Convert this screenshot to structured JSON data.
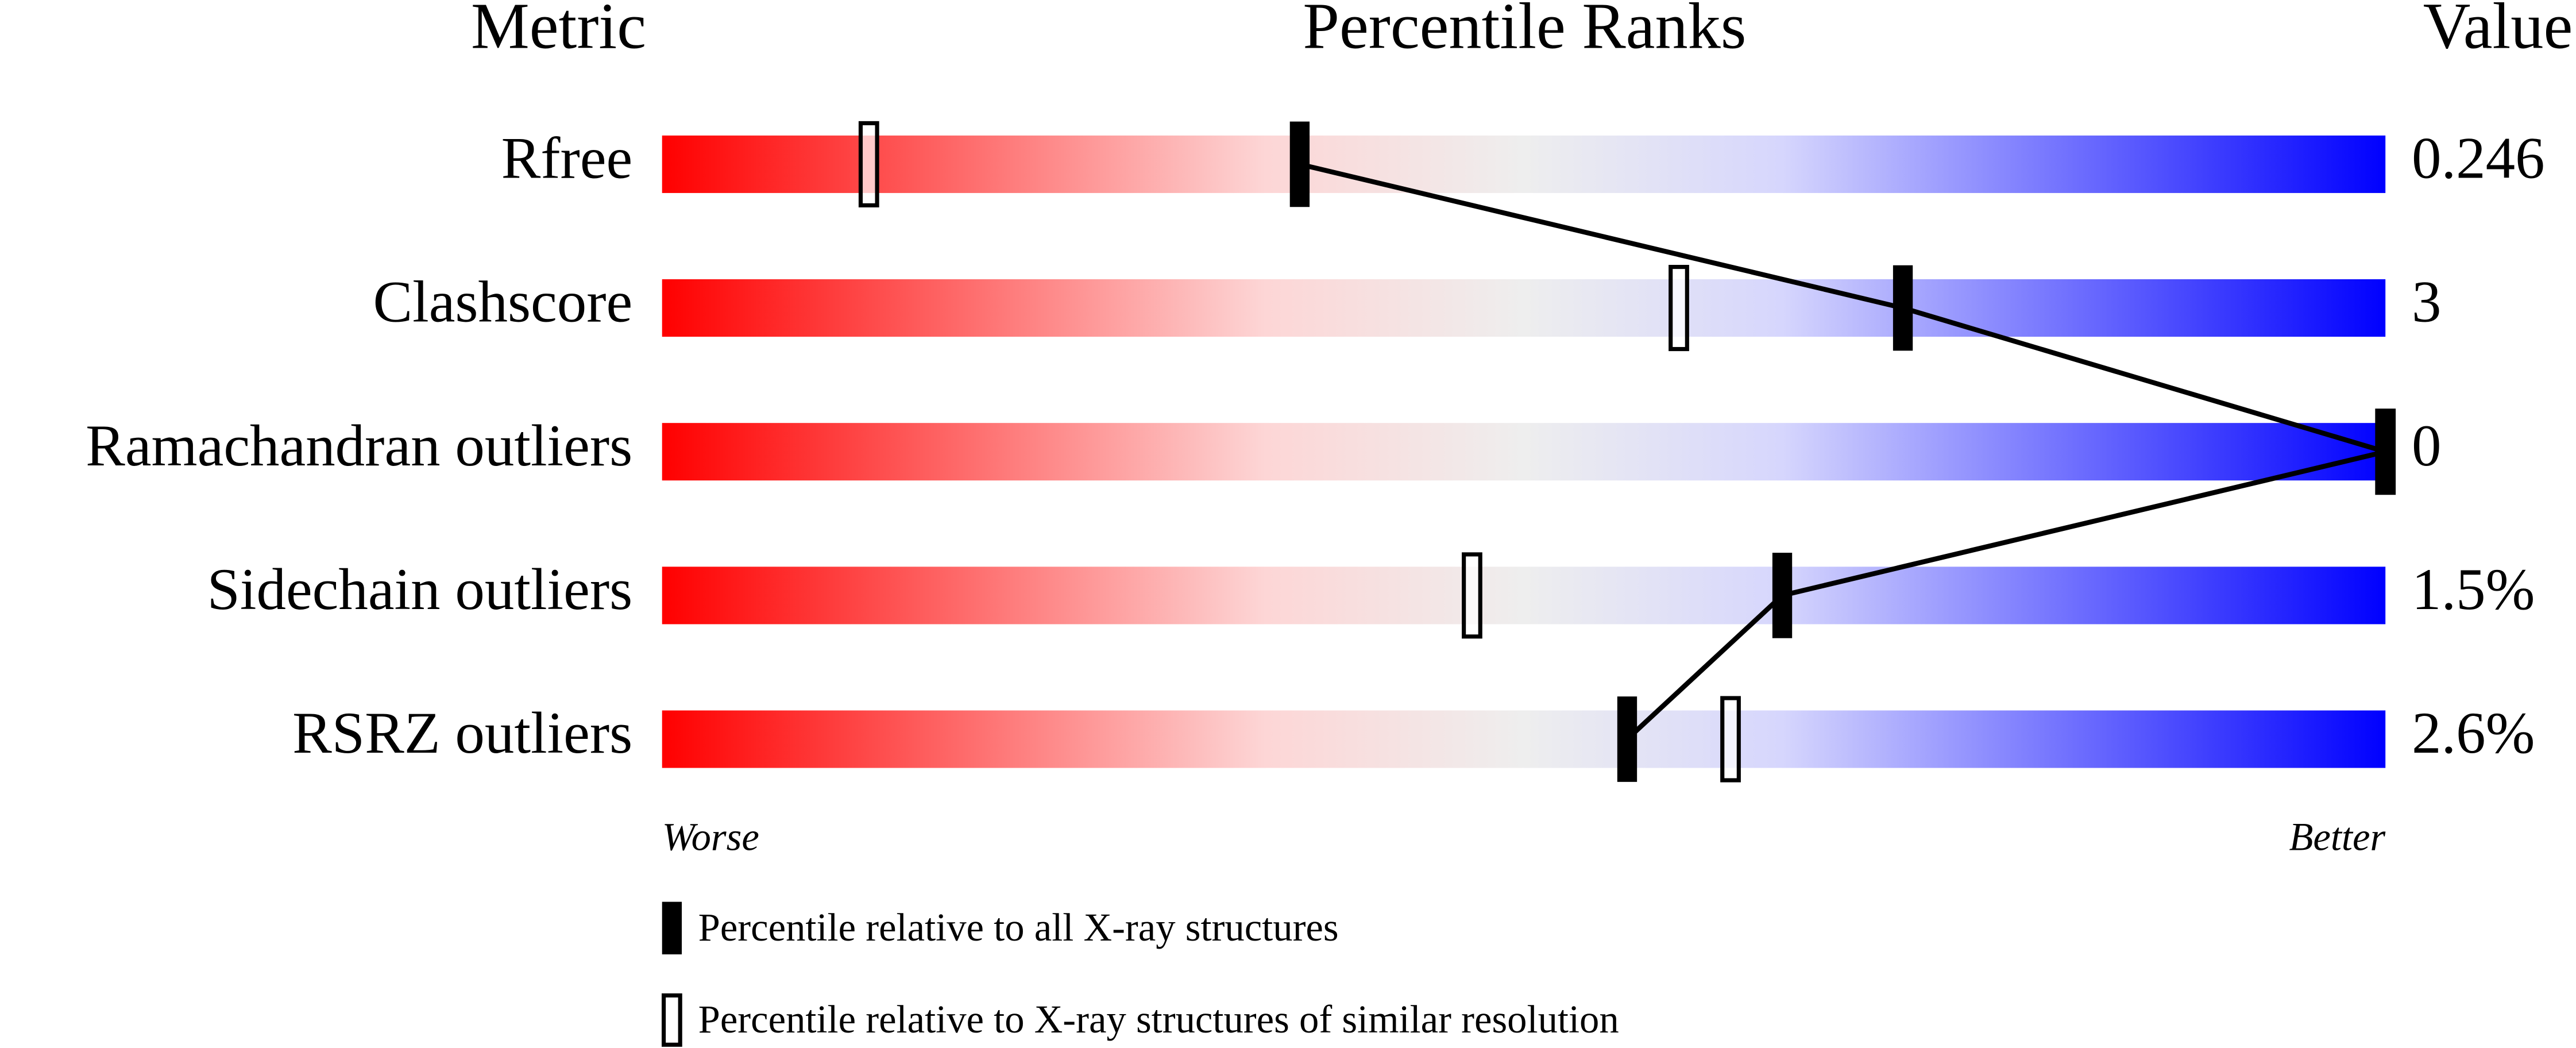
{
  "chart_data": {
    "type": "slider",
    "headers": [
      "Metric",
      "Percentile Ranks",
      "Value"
    ],
    "categories": [
      "Rfree",
      "Clashscore",
      "Ramachandran outliers",
      "Sidechain outliers",
      "RSRZ outliers"
    ],
    "metric_values": [
      "0.246",
      "3",
      "0",
      "1.5%",
      "2.6%"
    ],
    "xlim": [
      0,
      100
    ],
    "axis_labels": [
      "Worse",
      "Better"
    ],
    "series": [
      {
        "name": "Percentile relative to all X-ray structures",
        "color": "#000000",
        "filled": true,
        "values": [
          37,
          72,
          100,
          65,
          56
        ]
      },
      {
        "name": "Percentile relative to X-ray structures of similar resolution",
        "color": "#000000",
        "filled": false,
        "values": [
          12,
          59,
          100,
          47,
          62
        ]
      }
    ]
  }
}
